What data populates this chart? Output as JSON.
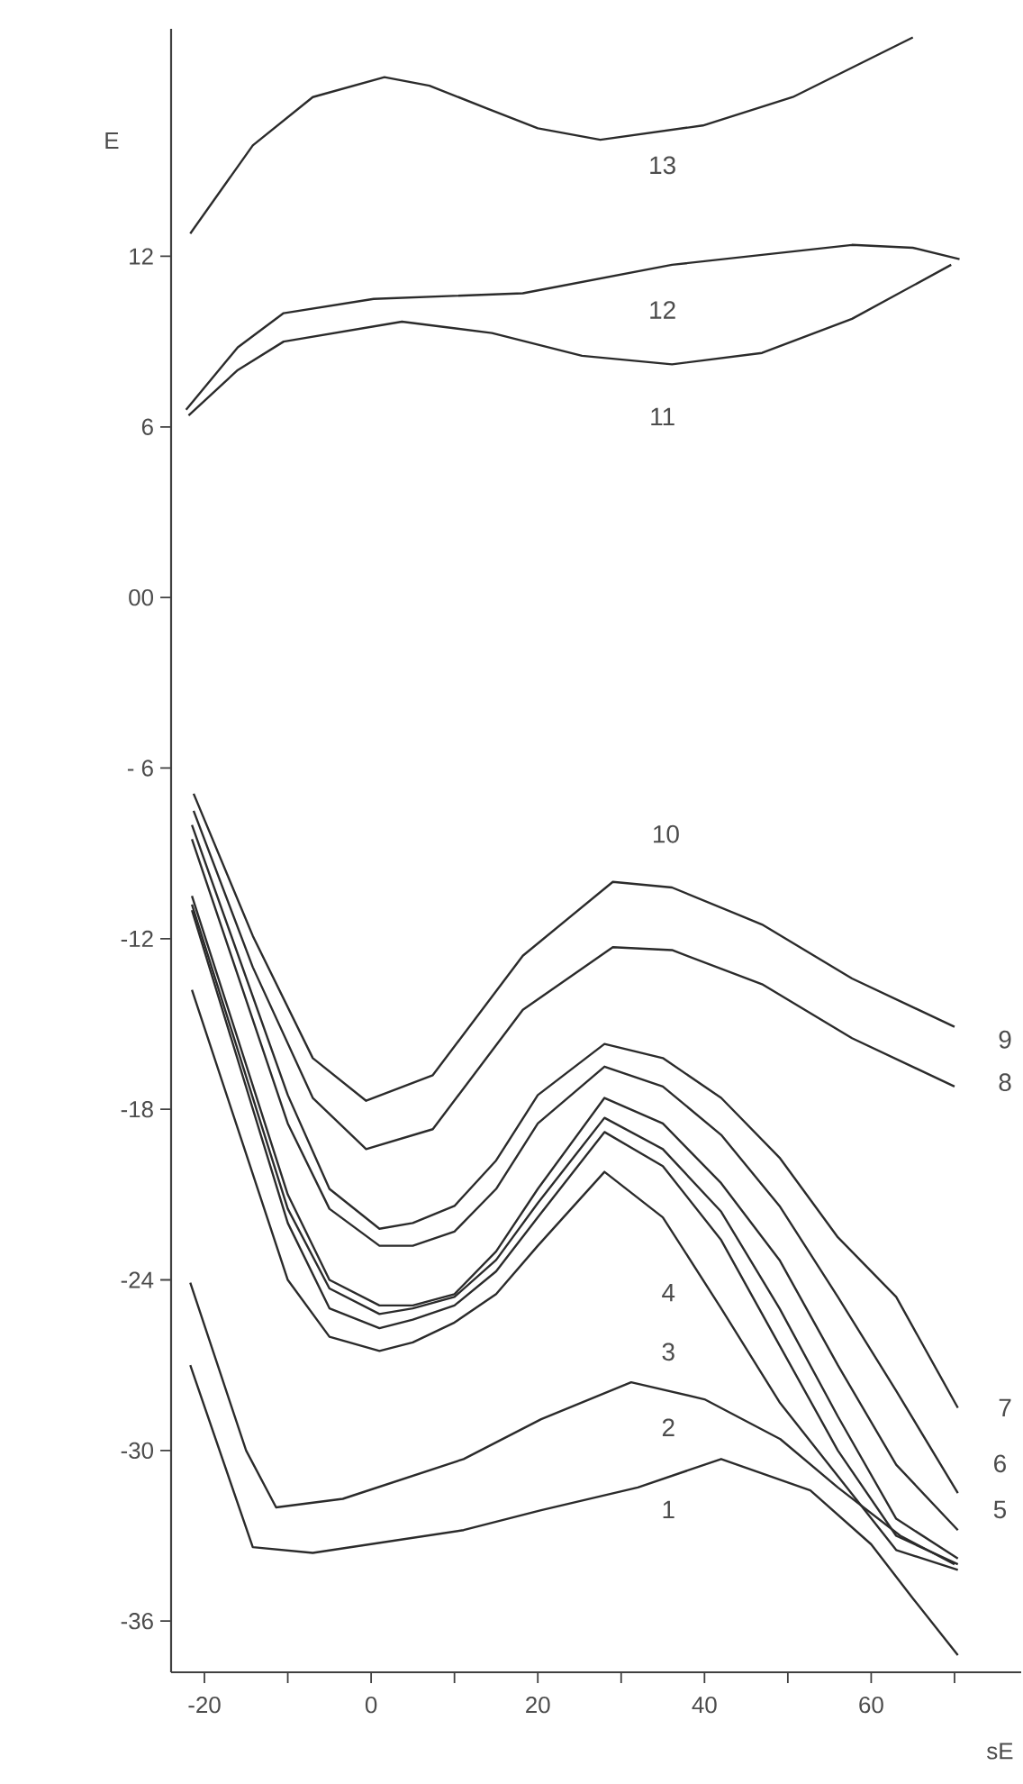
{
  "chart_data": {
    "type": "line",
    "xlabel": "sE",
    "ylabel": "E",
    "xlim": [
      -24,
      78
    ],
    "ylim": [
      -37.8,
      20
    ],
    "xticks": [
      -20,
      {
        "value": -10,
        "label": null
      },
      0,
      {
        "value": 10,
        "label": null
      },
      20,
      {
        "value": 30,
        "label": null
      },
      40,
      {
        "value": 50,
        "label": null
      },
      60,
      {
        "value": 70,
        "label": null
      }
    ],
    "yticks": [
      -36,
      -30,
      -24,
      -18,
      -12,
      {
        "value": -6,
        "label": "- 6"
      },
      {
        "value": 0,
        "label": "00"
      },
      6,
      12
    ],
    "marker": "none",
    "line_style": "solid",
    "series": [
      {
        "color": "#2b2b2b",
        "x": [
          -21.7,
          -14.2,
          -7,
          1.6,
          7,
          13.9,
          20,
          27.5,
          39.8,
          50.6,
          65
        ],
        "values": [
          12.8,
          15.9,
          17.6,
          18.3,
          18.0,
          17.2,
          16.5,
          16.1,
          16.6,
          17.6,
          19.7
        ]
      },
      {
        "color": "#2b2b2b",
        "x": [
          -22.2,
          -16,
          -10.5,
          0.3,
          18.2,
          36.1,
          57.7,
          65,
          70.6
        ],
        "values": [
          6.6,
          8.8,
          10.0,
          10.5,
          10.7,
          11.7,
          12.4,
          12.3,
          11.9
        ]
      },
      {
        "color": "#2b2b2b",
        "x": [
          -21.9,
          -16,
          -10.5,
          3.7,
          14.5,
          25.3,
          36.1,
          46.9,
          57.7,
          69.6
        ],
        "values": [
          6.4,
          8.0,
          9.0,
          9.7,
          9.3,
          8.5,
          8.2,
          8.6,
          9.8,
          11.7
        ]
      },
      {
        "color": "#2b2b2b",
        "x": [
          -21.3,
          -14.2,
          -7,
          -0.6,
          7.4,
          18.2,
          29,
          36.1,
          46.9,
          57.7,
          70
        ],
        "values": [
          -6.9,
          -11.9,
          -16.2,
          -17.7,
          -16.8,
          -12.6,
          -10.0,
          -10.2,
          -11.5,
          -13.4,
          -15.1
        ]
      },
      {
        "color": "#2b2b2b",
        "x": [
          -21.3,
          -14.2,
          -7,
          -0.6,
          7.4,
          18.2,
          29,
          36.1,
          46.9,
          57.7,
          70
        ],
        "values": [
          -7.5,
          -13.0,
          -17.6,
          -19.4,
          -18.7,
          -14.5,
          -12.3,
          -12.4,
          -13.6,
          -15.5,
          -17.2
        ]
      },
      {
        "color": "#2b2b2b",
        "x": [
          -21.5,
          -10,
          -5,
          1,
          5,
          10,
          15,
          20,
          28,
          35,
          42,
          49,
          56,
          63,
          70.4
        ],
        "values": [
          -8.0,
          -17.5,
          -20.8,
          -22.2,
          -22.0,
          -21.4,
          -19.8,
          -17.5,
          -15.7,
          -16.2,
          -17.6,
          -19.7,
          -22.5,
          -24.6,
          -28.5
        ]
      },
      {
        "color": "#2b2b2b",
        "x": [
          -21.5,
          -10,
          -5,
          1,
          5,
          10,
          15,
          20,
          28,
          35,
          42,
          49,
          56,
          63,
          70.4
        ],
        "values": [
          -8.5,
          -18.5,
          -21.5,
          -22.8,
          -22.8,
          -22.3,
          -20.8,
          -18.5,
          -16.5,
          -17.2,
          -18.9,
          -21.4,
          -24.6,
          -27.9,
          -31.5
        ]
      },
      {
        "color": "#2b2b2b",
        "x": [
          -21.5,
          -10,
          -5,
          1,
          5,
          10,
          15,
          20,
          28,
          35,
          42,
          49,
          56,
          63,
          70.4
        ],
        "values": [
          -10.5,
          -21.0,
          -24.0,
          -24.9,
          -24.9,
          -24.5,
          -23.0,
          -20.8,
          -17.6,
          -18.5,
          -20.6,
          -23.3,
          -27.0,
          -30.5,
          -32.8
        ]
      },
      {
        "color": "#2b2b2b",
        "x": [
          -21.5,
          -10,
          -5,
          1,
          5,
          10,
          15,
          20,
          28,
          35,
          42,
          49,
          56,
          63,
          70.4
        ],
        "values": [
          -10.8,
          -21.5,
          -24.3,
          -25.2,
          -25.0,
          -24.6,
          -23.3,
          -21.3,
          -18.3,
          -19.4,
          -21.6,
          -25.0,
          -28.8,
          -32.4,
          -33.8
        ]
      },
      {
        "color": "#2b2b2b",
        "x": [
          -21.5,
          -10,
          -5,
          1,
          5,
          10,
          15,
          20,
          28,
          35,
          42,
          49,
          56,
          63,
          70.4
        ],
        "values": [
          -11.0,
          -22.0,
          -25.0,
          -25.7,
          -25.4,
          -24.9,
          -23.7,
          -21.8,
          -18.8,
          -20.0,
          -22.6,
          -26.3,
          -30.0,
          -33.0,
          -34.0
        ]
      },
      {
        "color": "#2b2b2b",
        "x": [
          -21.5,
          -10,
          -5,
          1,
          5,
          10,
          15,
          20,
          28,
          35,
          42,
          49,
          56,
          63,
          70.4
        ],
        "values": [
          -13.8,
          -24.0,
          -26.0,
          -26.5,
          -26.2,
          -25.5,
          -24.5,
          -22.8,
          -20.2,
          -21.8,
          -25.0,
          -28.3,
          -30.9,
          -33.5,
          -34.2
        ]
      },
      {
        "color": "#2b2b2b",
        "x": [
          -21.7,
          -15,
          -11.4,
          -3.4,
          11.1,
          20.4,
          31.2,
          40,
          49.1,
          56,
          63.5,
          70
        ],
        "values": [
          -24.1,
          -30.0,
          -32.0,
          -31.7,
          -30.3,
          -28.9,
          -27.6,
          -28.2,
          -29.6,
          -31.3,
          -33.0,
          -34.0
        ]
      },
      {
        "color": "#2b2b2b",
        "x": [
          -21.7,
          -14.2,
          -7,
          11.1,
          20.4,
          32,
          42,
          52.7,
          60,
          65,
          70.4
        ],
        "values": [
          -27.0,
          -33.4,
          -33.6,
          -32.8,
          -32.1,
          -31.3,
          -30.3,
          -31.4,
          -33.3,
          -35.2,
          -37.2
        ]
      }
    ],
    "annotations": [
      "13",
      "12",
      "11",
      "10",
      "9",
      "8",
      "7",
      "6",
      "5",
      "4",
      "3",
      "2",
      "1"
    ]
  }
}
